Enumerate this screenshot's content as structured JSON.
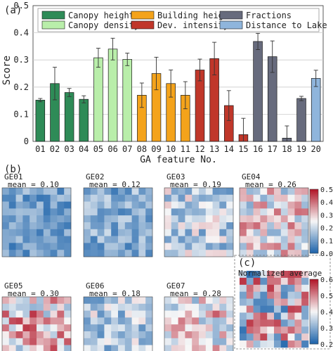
{
  "panel_labels": {
    "a": "(a)",
    "b": "(b)",
    "c": "(c)"
  },
  "chart_data": [
    {
      "type": "bar",
      "ylabel": "Score",
      "xlabel": "GA feature No.",
      "ylim": [
        0,
        0.5
      ],
      "yticks": [
        "0",
        "0.1",
        "0.2",
        "0.3",
        "0.4",
        "0.5"
      ],
      "grid": true,
      "legend_position": "top",
      "categories": [
        "01",
        "02",
        "03",
        "04",
        "05",
        "06",
        "07",
        "08",
        "09",
        "10",
        "11",
        "12",
        "13",
        "14",
        "15",
        "16",
        "17",
        "18",
        "19",
        "20"
      ],
      "values": [
        0.152,
        0.213,
        0.18,
        0.155,
        0.308,
        0.34,
        0.302,
        0.17,
        0.25,
        0.213,
        0.17,
        0.263,
        0.305,
        0.132,
        0.025,
        0.368,
        0.312,
        0.012,
        0.158,
        0.232
      ],
      "errors": [
        0.006,
        0.06,
        0.015,
        0.013,
        0.035,
        0.04,
        0.023,
        0.045,
        0.06,
        0.05,
        0.05,
        0.04,
        0.06,
        0.055,
        0.06,
        0.03,
        0.058,
        0.045,
        0.008,
        0.03
      ],
      "groups": [
        {
          "name": "Canopy height",
          "color": "#2e8b57",
          "indices": [
            0,
            1,
            2,
            3
          ]
        },
        {
          "name": "Canopy density",
          "color": "#b9eeaa",
          "indices": [
            4,
            5,
            6
          ]
        },
        {
          "name": "Building height",
          "color": "#f4a31b",
          "indices": [
            7,
            8,
            9,
            10
          ]
        },
        {
          "name": "Dev. intensity",
          "color": "#c0372a",
          "indices": [
            11,
            12,
            13,
            14
          ]
        },
        {
          "name": "Fractions",
          "color": "#676b7d",
          "indices": [
            15,
            16,
            17,
            18
          ]
        },
        {
          "name": "Distance to Lake",
          "color": "#8fb5dc",
          "indices": [
            19
          ]
        }
      ]
    },
    {
      "type": "heatmap",
      "colorbar_ticks_top": [
        "0.5",
        "0.4",
        "0.3",
        "0.2",
        "0.1",
        "0.0"
      ],
      "colorbar_ticks_bottom": [
        "0.6",
        "0.5",
        "0.4",
        "0.3",
        "0.2"
      ],
      "colors": {
        "low": "#2166ac",
        "mid": "#f7f7f7",
        "high": "#b2182b"
      },
      "maps": [
        {
          "title": "GE01",
          "mean_text": "mean = 0.10",
          "mean": 0.1
        },
        {
          "title": "GE02",
          "mean_text": "mean = 0.12",
          "mean": 0.12
        },
        {
          "title": "GE03",
          "mean_text": "mean = 0.19",
          "mean": 0.19
        },
        {
          "title": "GE04",
          "mean_text": "mean = 0.26",
          "mean": 0.26
        },
        {
          "title": "GE05",
          "mean_text": "mean = 0.30",
          "mean": 0.3
        },
        {
          "title": "GE06",
          "mean_text": "mean = 0.18",
          "mean": 0.18
        },
        {
          "title": "GE07",
          "mean_text": "mean = 0.28",
          "mean": 0.28
        }
      ],
      "normalized_title": "Normalized average"
    }
  ]
}
